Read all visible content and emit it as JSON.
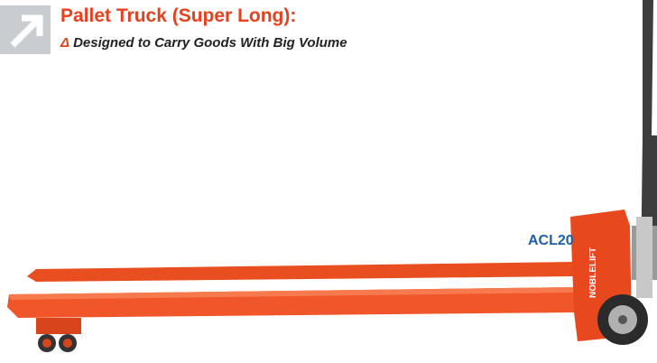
{
  "header": {
    "title": "Pallet Truck (Super Long):",
    "subtitle": {
      "marker": "Δ",
      "text": "Designed to Carry Goods With Big Volume"
    }
  },
  "product": {
    "model": "ACL20",
    "brand": "NOBLELIFT"
  }
}
